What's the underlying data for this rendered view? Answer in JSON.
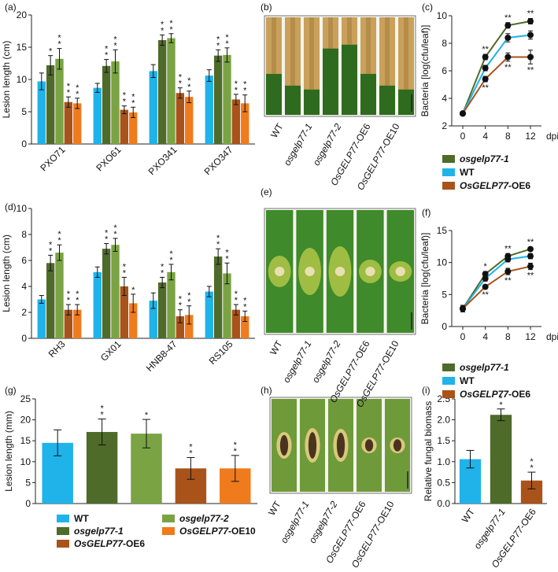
{
  "colors": {
    "wt": "#1fb3ea",
    "ko1": "#4f6b2a",
    "ko2": "#7aa344",
    "oe6": "#a9531a",
    "oe10": "#ef7b1d"
  },
  "panel_labels": [
    "(a)",
    "(b)",
    "(c)",
    "(d)",
    "(e)",
    "(f)",
    "(g)",
    "(h)",
    "(i)"
  ],
  "photo_labels": [
    "WT",
    "osgelp77-1",
    "osgelp77-2",
    "OsGELP77-OE6",
    "OsGELP77-OE10"
  ],
  "legend_cf": [
    {
      "label": "osgelp77-1",
      "color_key": "ko1",
      "italic": "all"
    },
    {
      "label": "WT",
      "color_key": "wt",
      "italic": "none"
    },
    {
      "label": "OsGELP77-OE6",
      "color_key": "oe6",
      "italic": "prefix"
    }
  ],
  "legend_g": [
    {
      "label": "WT",
      "color_key": "wt",
      "italic": "none"
    },
    {
      "label": "osgelp77-1",
      "color_key": "ko1",
      "italic": "all"
    },
    {
      "label": "OsGELP77-OE6",
      "color_key": "oe6",
      "italic": "prefix"
    },
    {
      "label": "osgelp77-2",
      "color_key": "ko2",
      "italic": "all"
    },
    {
      "label": "OsGELP77-OE10",
      "color_key": "oe10",
      "italic": "prefix"
    }
  ],
  "chart_data": [
    {
      "panel": "(a)",
      "type": "bar",
      "ylabel": "Lesion length (cm)",
      "ylim": [
        0,
        20
      ],
      "yticks": [
        0,
        5,
        10,
        15,
        20
      ],
      "categories": [
        "PXO71",
        "PXO61",
        "PXO341",
        "PXO347"
      ],
      "series": [
        {
          "name": "WT",
          "values": [
            9.7,
            8.7,
            11.3,
            10.6
          ],
          "errors": [
            1.3,
            0.7,
            1.0,
            0.9
          ],
          "stars": [
            "",
            "",
            "",
            ""
          ]
        },
        {
          "name": "osgelp77-1",
          "values": [
            12.2,
            12.1,
            16.1,
            13.7
          ],
          "errors": [
            1.5,
            1.0,
            0.8,
            0.9
          ],
          "stars": [
            "*",
            "**",
            "**",
            "**"
          ]
        },
        {
          "name": "osgelp77-2",
          "values": [
            13.2,
            12.8,
            16.4,
            13.8
          ],
          "errors": [
            1.6,
            1.8,
            0.7,
            1.1
          ],
          "stars": [
            "**",
            "**",
            "**",
            "**"
          ]
        },
        {
          "name": "OsGELP77-OE6",
          "values": [
            6.5,
            5.3,
            7.9,
            6.9
          ],
          "errors": [
            0.8,
            0.6,
            0.8,
            0.8
          ],
          "stars": [
            "**",
            "**",
            "**",
            "**"
          ]
        },
        {
          "name": "OsGELP77-OE10",
          "values": [
            6.3,
            4.9,
            7.3,
            6.3
          ],
          "errors": [
            0.8,
            0.8,
            0.9,
            1.3
          ],
          "stars": [
            "**",
            "**",
            "**",
            "**"
          ]
        }
      ]
    },
    {
      "panel": "(c)",
      "type": "line",
      "ylabel": "Bacteria [log(cfu/leaf)]",
      "xlabel": "dpi",
      "x": [
        0,
        4,
        8,
        12
      ],
      "xticks": [
        "0",
        "4",
        "8",
        "12"
      ],
      "ylim": [
        2,
        10
      ],
      "yticks": [
        2,
        4,
        6,
        8,
        10
      ],
      "series": [
        {
          "name": "osgelp77-1",
          "values": [
            2.9,
            7.0,
            9.3,
            9.6
          ],
          "errors": [
            0.1,
            0.2,
            0.2,
            0.2
          ],
          "stars": [
            "",
            "**",
            "**",
            "**"
          ]
        },
        {
          "name": "WT",
          "values": [
            2.9,
            6.2,
            8.4,
            8.6
          ],
          "errors": [
            0.1,
            0.2,
            0.3,
            0.3
          ],
          "stars": [
            "",
            "",
            "",
            ""
          ]
        },
        {
          "name": "OsGELP77-OE6",
          "values": [
            2.9,
            5.4,
            7.0,
            7.0
          ],
          "errors": [
            0.1,
            0.2,
            0.3,
            0.5
          ],
          "stars": [
            "",
            "**",
            "**",
            "**"
          ]
        }
      ]
    },
    {
      "panel": "(d)",
      "type": "bar",
      "ylabel": "Lesion length (cm)",
      "ylim": [
        0,
        10
      ],
      "yticks": [
        0,
        2,
        4,
        6,
        8,
        10
      ],
      "categories": [
        "RH3",
        "GX01",
        "HNB8-47",
        "RS105"
      ],
      "series": [
        {
          "name": "WT",
          "values": [
            3.0,
            5.1,
            2.9,
            3.6
          ],
          "errors": [
            0.3,
            0.4,
            0.6,
            0.4
          ],
          "stars": [
            "",
            "",
            "",
            ""
          ]
        },
        {
          "name": "osgelp77-1",
          "values": [
            5.8,
            6.9,
            4.3,
            6.3
          ],
          "errors": [
            0.6,
            0.4,
            0.4,
            0.6
          ],
          "stars": [
            "**",
            "**",
            "**",
            "**"
          ]
        },
        {
          "name": "osgelp77-2",
          "values": [
            6.6,
            7.2,
            5.1,
            5.0
          ],
          "errors": [
            0.6,
            0.5,
            0.6,
            0.8
          ],
          "stars": [
            "**",
            "**",
            "**",
            "**"
          ]
        },
        {
          "name": "OsGELP77-OE6",
          "values": [
            2.2,
            4.0,
            1.7,
            2.2
          ],
          "errors": [
            0.4,
            0.7,
            0.5,
            0.4
          ],
          "stars": [
            "**",
            "**",
            "**",
            "**"
          ]
        },
        {
          "name": "OsGELP77-OE10",
          "values": [
            2.2,
            2.7,
            1.8,
            1.7
          ],
          "errors": [
            0.4,
            0.7,
            0.7,
            0.4
          ],
          "stars": [
            "**",
            "*",
            "**",
            "**"
          ]
        }
      ]
    },
    {
      "panel": "(f)",
      "type": "line",
      "ylabel": "Bacteria [log(cfu/leaf)]",
      "xlabel": "dpi",
      "x": [
        0,
        4,
        8,
        12
      ],
      "xticks": [
        "0",
        "4",
        "8",
        "12"
      ],
      "ylim": [
        0,
        15
      ],
      "yticks": [
        0,
        5,
        10,
        15
      ],
      "series": [
        {
          "name": "osgelp77-1",
          "values": [
            2.8,
            8.2,
            11.0,
            12.1
          ],
          "errors": [
            0.5,
            0.4,
            0.4,
            0.3
          ],
          "stars": [
            "",
            "*",
            "**",
            "**"
          ]
        },
        {
          "name": "WT",
          "values": [
            2.8,
            7.5,
            10.5,
            11.0
          ],
          "errors": [
            0.5,
            0.4,
            0.4,
            0.4
          ],
          "stars": [
            "",
            "",
            "",
            ""
          ]
        },
        {
          "name": "OsGELP77-OE6",
          "values": [
            2.8,
            6.2,
            8.6,
            9.4
          ],
          "errors": [
            0.5,
            0.3,
            0.5,
            0.5
          ],
          "stars": [
            "",
            "**",
            "**",
            "**"
          ]
        }
      ]
    },
    {
      "panel": "(g)",
      "type": "bar",
      "ylabel": "Lesion length (mm)",
      "ylim": [
        0,
        25
      ],
      "yticks": [
        0,
        5,
        10,
        15,
        20,
        25
      ],
      "categories": [
        "WT",
        "osgelp77-1",
        "osgelp77-2",
        "OsGELP77-OE6",
        "OsGELP77-OE10"
      ],
      "values": [
        14.5,
        17.1,
        16.7,
        8.4,
        8.4
      ],
      "errors": [
        3.1,
        3.1,
        3.4,
        2.6,
        3.1
      ],
      "stars": [
        "",
        "**",
        "*",
        "**",
        "**"
      ],
      "color_keys": [
        "wt",
        "ko1",
        "ko2",
        "oe6",
        "oe10"
      ]
    },
    {
      "panel": "(i)",
      "type": "bar",
      "ylabel": "Relative fungal biomass",
      "ylim": [
        0,
        2.5
      ],
      "yticks": [
        "0.0",
        "0.5",
        "1.0",
        "1.5",
        "2.0",
        "2.5"
      ],
      "categories": [
        "WT",
        "osgelp77-1",
        "OsGELP77-OE6"
      ],
      "values": [
        1.06,
        2.12,
        0.55
      ],
      "errors": [
        0.21,
        0.14,
        0.2
      ],
      "stars": [
        "",
        "**",
        "**"
      ],
      "color_keys": [
        "wt",
        "ko1",
        "oe6"
      ]
    }
  ]
}
